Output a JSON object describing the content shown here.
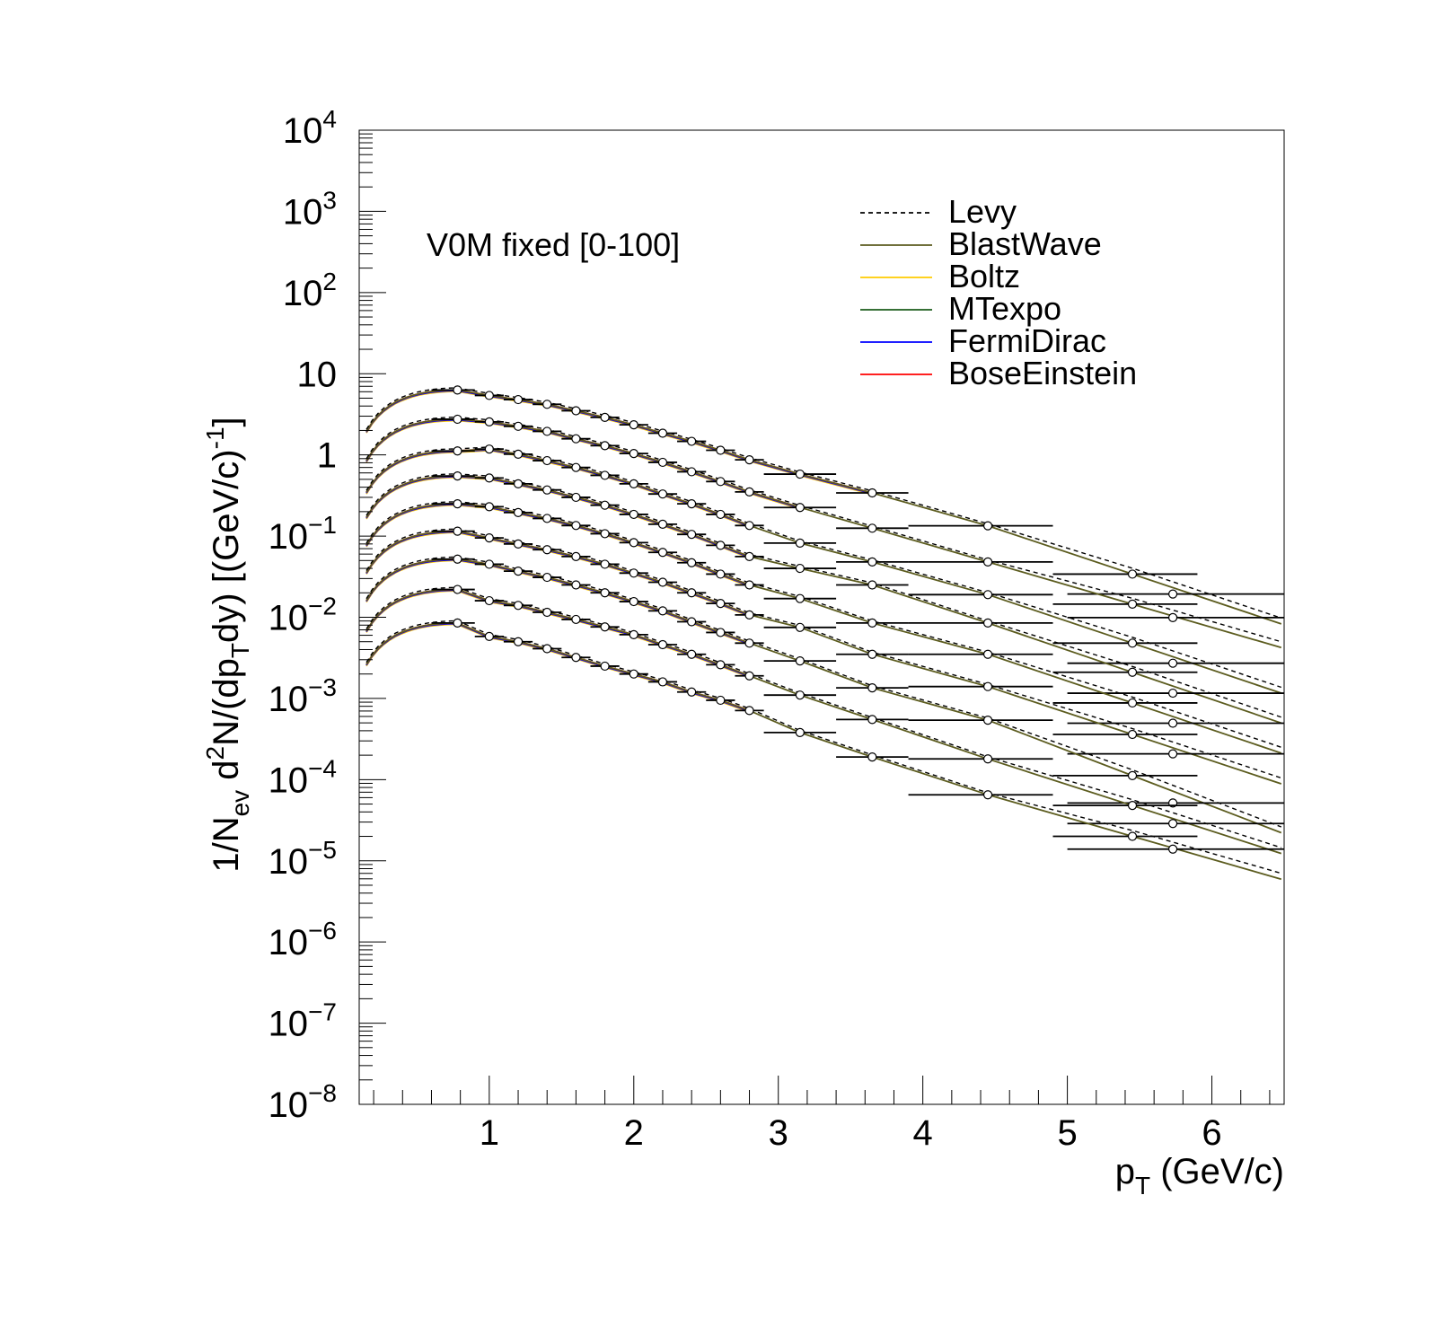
{
  "chart_data": {
    "type": "scatter",
    "title": "",
    "annotation": "V0M fixed [0-100]",
    "xlabel": {
      "main": "p",
      "sub": "T",
      "rest": " (GeV/c)"
    },
    "ylabel": {
      "p1": "1/N",
      "s1": "ev",
      "p2": " d",
      "e1": "2",
      "p3": "N/(dp",
      "s2": "T",
      "p4": "dy) [(GeV/c)",
      "e2": "-1",
      "p5": "]"
    },
    "xlim": [
      0.1,
      6.5
    ],
    "ylim": [
      1e-08,
      10000
    ],
    "yscale": "log",
    "x_ticks": [
      "1",
      "2",
      "3",
      "4",
      "5",
      "6"
    ],
    "y_ticks": [
      {
        "base": "10",
        "exp": "−8"
      },
      {
        "base": "10",
        "exp": "−7"
      },
      {
        "base": "10",
        "exp": "−6"
      },
      {
        "base": "10",
        "exp": "−5"
      },
      {
        "base": "10",
        "exp": "−4"
      },
      {
        "base": "10",
        "exp": "−3"
      },
      {
        "base": "10",
        "exp": "−2"
      },
      {
        "base": "10",
        "exp": "−1"
      },
      {
        "base": "1",
        "exp": ""
      },
      {
        "base": "10",
        "exp": ""
      },
      {
        "base": "10",
        "exp": "2"
      },
      {
        "base": "10",
        "exp": "3"
      },
      {
        "base": "10",
        "exp": "4"
      }
    ],
    "legend_position": "top-right",
    "legend": [
      {
        "name": "Levy",
        "color": "#000000",
        "dashed": true
      },
      {
        "name": "BlastWave",
        "color": "#5c5c1f",
        "dashed": false
      },
      {
        "name": "Boltz",
        "color": "#ffcc00",
        "dashed": false
      },
      {
        "name": "MTexpo",
        "color": "#1a5c1a",
        "dashed": false
      },
      {
        "name": "FermiDirac",
        "color": "#0000ff",
        "dashed": false
      },
      {
        "name": "BoseEinstein",
        "color": "#ff0000",
        "dashed": false
      }
    ],
    "bin_edges": [
      0.6,
      0.9,
      1.1,
      1.3,
      1.5,
      1.7,
      1.9,
      2.1,
      2.3,
      2.5,
      2.7,
      2.9,
      3.4,
      3.9,
      4.9,
      5.9,
      7.0
    ],
    "marker_x": [
      0.78,
      1.0,
      1.2,
      1.4,
      1.6,
      1.8,
      2.0,
      2.2,
      2.4,
      2.6,
      2.8,
      3.15,
      3.65,
      4.45,
      5.45,
      6.5
    ],
    "series": [
      {
        "points": [
          6.3,
          5.4,
          4.8,
          4.2,
          3.5,
          2.9,
          2.35,
          1.85,
          1.47,
          1.14,
          0.87,
          0.58,
          0.34,
          0.134,
          0.034,
          null
        ],
        "soft_end": 4.0
      },
      {
        "points": [
          2.75,
          2.55,
          2.25,
          1.95,
          1.58,
          1.3,
          1.04,
          0.81,
          0.62,
          0.47,
          0.35,
          0.225,
          0.125,
          0.048,
          0.0145,
          null
        ],
        "soft_end": 3.5
      },
      {
        "points": [
          1.12,
          1.18,
          1.02,
          0.85,
          0.7,
          0.56,
          0.44,
          0.33,
          0.25,
          0.185,
          0.135,
          0.082,
          0.048,
          0.019,
          0.0048,
          null
        ],
        "soft_end": 2.95
      },
      {
        "points": [
          0.55,
          0.52,
          0.44,
          0.37,
          0.3,
          0.24,
          0.185,
          0.14,
          0.105,
          0.077,
          0.056,
          0.04,
          0.025,
          0.0085,
          0.0021,
          null
        ],
        "soft_end": 2.95
      },
      {
        "points": [
          0.25,
          0.23,
          0.195,
          0.165,
          0.135,
          0.107,
          0.083,
          0.063,
          0.047,
          0.034,
          0.025,
          0.017,
          0.0085,
          0.0035,
          0.00088,
          null
        ],
        "soft_end": 2.95
      },
      {
        "points": [
          0.115,
          0.095,
          0.08,
          0.068,
          0.056,
          0.045,
          0.035,
          0.027,
          0.02,
          0.0148,
          0.0107,
          0.0075,
          0.0035,
          0.0014,
          0.00036,
          null
        ],
        "soft_end": 2.95
      },
      {
        "points": [
          0.052,
          0.045,
          0.037,
          0.031,
          0.025,
          0.02,
          0.0156,
          0.012,
          0.0088,
          0.0065,
          0.0048,
          0.0029,
          0.00135,
          0.00054,
          0.000112,
          null
        ],
        "soft_end": 2.95
      },
      {
        "points": [
          0.022,
          0.016,
          0.014,
          0.0115,
          0.0094,
          0.0076,
          0.0061,
          0.0046,
          0.0035,
          0.0026,
          0.0019,
          0.0011,
          0.00055,
          0.00018,
          4.8e-05,
          null
        ],
        "soft_end": 2.95
      },
      {
        "points": [
          0.0085,
          0.0058,
          0.005,
          0.0041,
          0.0032,
          0.0025,
          0.002,
          0.0016,
          0.0012,
          0.00095,
          0.00071,
          0.00038,
          0.00019,
          6.5e-05,
          2e-05,
          null
        ],
        "soft_end": 2.95
      }
    ]
  }
}
